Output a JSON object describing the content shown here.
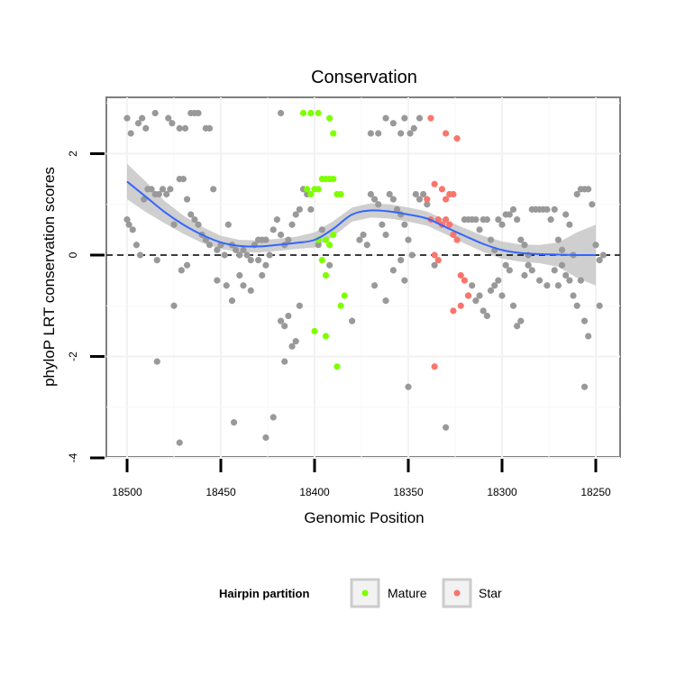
{
  "chart_data": {
    "type": "scatter",
    "title": "Conservation",
    "xlabel": "Genomic Position",
    "ylabel": "phyloP LRT conservation scores",
    "xlim": [
      18507,
      18237
    ],
    "ylim": [
      -4,
      3.1
    ],
    "x_reversed": true,
    "x_ticks": [
      18500,
      18450,
      18400,
      18350,
      18300,
      18250
    ],
    "x_tick_labels": [
      "18500",
      "18450",
      "18400",
      "18350",
      "18300",
      "18250"
    ],
    "y_ticks": [
      -4,
      -2,
      0,
      2
    ],
    "y_tick_labels": [
      "-4",
      "-2",
      "0",
      "2"
    ],
    "reference_line": {
      "y": 0,
      "style": "dashed",
      "color": "#000000"
    },
    "colors": {
      "other": "#999999",
      "mature": "#7fff00",
      "star": "#f8766d",
      "smooth": "#3366ff",
      "band": "#bfbfbf"
    },
    "legend": {
      "title": "Hairpin partition",
      "position": "bottom",
      "entries": [
        {
          "label": "Mature",
          "color": "#7fff00"
        },
        {
          "label": "Star",
          "color": "#f8766d"
        }
      ]
    },
    "series": [
      {
        "name": "Other",
        "points": [
          [
            18500,
            2.7
          ],
          [
            18498,
            2.4
          ],
          [
            18494,
            2.6
          ],
          [
            18492,
            2.7
          ],
          [
            18490,
            2.5
          ],
          [
            18485,
            2.8
          ],
          [
            18478,
            2.7
          ],
          [
            18476,
            2.6
          ],
          [
            18472,
            2.5
          ],
          [
            18469,
            2.5
          ],
          [
            18466,
            2.8
          ],
          [
            18464,
            2.8
          ],
          [
            18462,
            2.8
          ],
          [
            18458,
            2.5
          ],
          [
            18456,
            2.5
          ],
          [
            18418,
            2.8
          ],
          [
            18370,
            2.4
          ],
          [
            18366,
            2.4
          ],
          [
            18362,
            2.7
          ],
          [
            18358,
            2.6
          ],
          [
            18354,
            2.4
          ],
          [
            18352,
            2.7
          ],
          [
            18349,
            2.4
          ],
          [
            18347,
            2.5
          ],
          [
            18344,
            2.7
          ],
          [
            18500,
            0.7
          ],
          [
            18499,
            0.6
          ],
          [
            18497,
            0.5
          ],
          [
            18495,
            0.2
          ],
          [
            18493,
            0.0
          ],
          [
            18491,
            1.1
          ],
          [
            18489,
            1.3
          ],
          [
            18487,
            1.3
          ],
          [
            18485,
            1.2
          ],
          [
            18483,
            1.2
          ],
          [
            18481,
            1.3
          ],
          [
            18479,
            1.2
          ],
          [
            18477,
            1.3
          ],
          [
            18475,
            0.6
          ],
          [
            18472,
            1.5
          ],
          [
            18470,
            1.5
          ],
          [
            18468,
            1.1
          ],
          [
            18466,
            0.8
          ],
          [
            18464,
            0.7
          ],
          [
            18462,
            0.6
          ],
          [
            18460,
            0.4
          ],
          [
            18458,
            0.3
          ],
          [
            18456,
            0.2
          ],
          [
            18454,
            1.3
          ],
          [
            18452,
            0.1
          ],
          [
            18450,
            0.2
          ],
          [
            18448,
            0.0
          ],
          [
            18446,
            0.6
          ],
          [
            18444,
            0.2
          ],
          [
            18442,
            0.1
          ],
          [
            18440,
            0.0
          ],
          [
            18438,
            0.1
          ],
          [
            18436,
            0.0
          ],
          [
            18434,
            -0.1
          ],
          [
            18432,
            0.2
          ],
          [
            18430,
            0.3
          ],
          [
            18428,
            0.3
          ],
          [
            18426,
            0.3
          ],
          [
            18424,
            0.0
          ],
          [
            18422,
            0.5
          ],
          [
            18420,
            0.7
          ],
          [
            18418,
            0.4
          ],
          [
            18416,
            0.2
          ],
          [
            18414,
            0.3
          ],
          [
            18412,
            0.6
          ],
          [
            18410,
            0.8
          ],
          [
            18408,
            0.9
          ],
          [
            18406,
            1.3
          ],
          [
            18404,
            1.2
          ],
          [
            18402,
            0.9
          ],
          [
            18398,
            0.2
          ],
          [
            18396,
            0.5
          ],
          [
            18376,
            0.3
          ],
          [
            18374,
            0.4
          ],
          [
            18372,
            0.2
          ],
          [
            18370,
            1.2
          ],
          [
            18368,
            1.1
          ],
          [
            18366,
            1.0
          ],
          [
            18364,
            0.6
          ],
          [
            18362,
            0.4
          ],
          [
            18360,
            1.2
          ],
          [
            18358,
            1.1
          ],
          [
            18356,
            0.9
          ],
          [
            18354,
            0.8
          ],
          [
            18352,
            0.6
          ],
          [
            18350,
            0.3
          ],
          [
            18348,
            0.0
          ],
          [
            18346,
            1.2
          ],
          [
            18344,
            1.1
          ],
          [
            18342,
            1.2
          ],
          [
            18340,
            1.0
          ],
          [
            18320,
            0.7
          ],
          [
            18318,
            0.7
          ],
          [
            18316,
            0.7
          ],
          [
            18314,
            0.7
          ],
          [
            18312,
            0.5
          ],
          [
            18310,
            0.7
          ],
          [
            18308,
            0.7
          ],
          [
            18306,
            0.3
          ],
          [
            18304,
            0.1
          ],
          [
            18302,
            0.7
          ],
          [
            18300,
            0.6
          ],
          [
            18298,
            0.8
          ],
          [
            18296,
            0.8
          ],
          [
            18294,
            0.9
          ],
          [
            18292,
            0.7
          ],
          [
            18290,
            0.3
          ],
          [
            18288,
            0.2
          ],
          [
            18286,
            0.0
          ],
          [
            18284,
            0.9
          ],
          [
            18282,
            0.9
          ],
          [
            18280,
            0.9
          ],
          [
            18278,
            0.9
          ],
          [
            18276,
            0.9
          ],
          [
            18274,
            0.7
          ],
          [
            18272,
            0.9
          ],
          [
            18270,
            0.3
          ],
          [
            18268,
            0.1
          ],
          [
            18266,
            0.8
          ],
          [
            18264,
            0.6
          ],
          [
            18262,
            0.0
          ],
          [
            18260,
            1.2
          ],
          [
            18258,
            1.3
          ],
          [
            18256,
            1.3
          ],
          [
            18254,
            1.3
          ],
          [
            18252,
            1.0
          ],
          [
            18250,
            0.2
          ],
          [
            18248,
            -0.1
          ],
          [
            18246,
            0.0
          ],
          [
            18484,
            -0.1
          ],
          [
            18475,
            -1.0
          ],
          [
            18471,
            -0.3
          ],
          [
            18468,
            -0.2
          ],
          [
            18452,
            -0.5
          ],
          [
            18447,
            -0.6
          ],
          [
            18444,
            -0.9
          ],
          [
            18440,
            -0.4
          ],
          [
            18438,
            -0.6
          ],
          [
            18434,
            -0.7
          ],
          [
            18430,
            -0.1
          ],
          [
            18428,
            -0.4
          ],
          [
            18426,
            -0.2
          ],
          [
            18418,
            -1.3
          ],
          [
            18416,
            -1.4
          ],
          [
            18414,
            -1.2
          ],
          [
            18412,
            -1.8
          ],
          [
            18410,
            -1.7
          ],
          [
            18408,
            -1.0
          ],
          [
            18392,
            -0.2
          ],
          [
            18380,
            -1.3
          ],
          [
            18368,
            -0.6
          ],
          [
            18362,
            -0.9
          ],
          [
            18358,
            -0.3
          ],
          [
            18354,
            -0.1
          ],
          [
            18352,
            -0.5
          ],
          [
            18336,
            -0.2
          ],
          [
            18318,
            -0.8
          ],
          [
            18316,
            -0.6
          ],
          [
            18314,
            -0.9
          ],
          [
            18312,
            -0.8
          ],
          [
            18310,
            -1.1
          ],
          [
            18308,
            -1.2
          ],
          [
            18306,
            -0.7
          ],
          [
            18304,
            -0.6
          ],
          [
            18302,
            -0.5
          ],
          [
            18300,
            -0.8
          ],
          [
            18298,
            -0.2
          ],
          [
            18296,
            -0.3
          ],
          [
            18294,
            -1.0
          ],
          [
            18292,
            -1.4
          ],
          [
            18290,
            -1.3
          ],
          [
            18288,
            -0.4
          ],
          [
            18286,
            -0.2
          ],
          [
            18284,
            -0.3
          ],
          [
            18280,
            -0.5
          ],
          [
            18276,
            -0.6
          ],
          [
            18272,
            -0.3
          ],
          [
            18270,
            -0.6
          ],
          [
            18268,
            -0.2
          ],
          [
            18266,
            -0.4
          ],
          [
            18264,
            -0.5
          ],
          [
            18262,
            -0.8
          ],
          [
            18260,
            -1.0
          ],
          [
            18258,
            -0.5
          ],
          [
            18256,
            -1.3
          ],
          [
            18254,
            -1.6
          ],
          [
            18484,
            -2.1
          ],
          [
            18472,
            -3.7
          ],
          [
            18443,
            -3.3
          ],
          [
            18426,
            -3.6
          ],
          [
            18422,
            -3.2
          ],
          [
            18416,
            -2.1
          ],
          [
            18350,
            -2.6
          ],
          [
            18330,
            -3.4
          ],
          [
            18256,
            -2.6
          ],
          [
            18248,
            -1.0
          ]
        ]
      },
      {
        "name": "Mature",
        "points": [
          [
            18406,
            2.8
          ],
          [
            18402,
            2.8
          ],
          [
            18398,
            2.8
          ],
          [
            18392,
            2.7
          ],
          [
            18390,
            2.4
          ],
          [
            18404,
            1.3
          ],
          [
            18402,
            1.2
          ],
          [
            18400,
            1.3
          ],
          [
            18398,
            1.3
          ],
          [
            18396,
            1.5
          ],
          [
            18394,
            1.5
          ],
          [
            18392,
            1.5
          ],
          [
            18390,
            1.5
          ],
          [
            18388,
            1.2
          ],
          [
            18386,
            1.2
          ],
          [
            18394,
            0.3
          ],
          [
            18392,
            0.2
          ],
          [
            18390,
            0.4
          ],
          [
            18398,
            0.3
          ],
          [
            18396,
            -0.1
          ],
          [
            18394,
            -0.4
          ],
          [
            18386,
            -1.0
          ],
          [
            18384,
            -0.8
          ],
          [
            18400,
            -1.5
          ],
          [
            18394,
            -1.6
          ],
          [
            18388,
            -2.2
          ]
        ]
      },
      {
        "name": "Star",
        "points": [
          [
            18338,
            2.7
          ],
          [
            18330,
            2.4
          ],
          [
            18324,
            2.3
          ],
          [
            18336,
            1.4
          ],
          [
            18332,
            1.3
          ],
          [
            18340,
            1.1
          ],
          [
            18330,
            1.1
          ],
          [
            18328,
            1.2
          ],
          [
            18326,
            1.2
          ],
          [
            18338,
            0.7
          ],
          [
            18334,
            0.7
          ],
          [
            18332,
            0.6
          ],
          [
            18330,
            0.7
          ],
          [
            18328,
            0.6
          ],
          [
            18326,
            0.4
          ],
          [
            18324,
            0.3
          ],
          [
            18336,
            0.0
          ],
          [
            18334,
            -0.1
          ],
          [
            18322,
            -0.4
          ],
          [
            18320,
            -0.5
          ],
          [
            18318,
            -0.8
          ],
          [
            18322,
            -1.0
          ],
          [
            18326,
            -1.1
          ],
          [
            18336,
            -2.2
          ]
        ]
      }
    ],
    "smooth": {
      "x": [
        18500,
        18490,
        18480,
        18470,
        18460,
        18450,
        18440,
        18430,
        18420,
        18410,
        18400,
        18390,
        18380,
        18370,
        18360,
        18350,
        18340,
        18330,
        18320,
        18310,
        18300,
        18290,
        18280,
        18270,
        18260,
        18250
      ],
      "y": [
        1.45,
        1.15,
        0.85,
        0.6,
        0.4,
        0.25,
        0.18,
        0.17,
        0.2,
        0.24,
        0.3,
        0.52,
        0.8,
        0.88,
        0.86,
        0.8,
        0.72,
        0.55,
        0.38,
        0.22,
        0.1,
        0.04,
        0.02,
        0.01,
        0.0,
        0.0
      ],
      "band": [
        0.35,
        0.3,
        0.22,
        0.18,
        0.16,
        0.13,
        0.12,
        0.12,
        0.12,
        0.12,
        0.15,
        0.15,
        0.14,
        0.14,
        0.14,
        0.14,
        0.14,
        0.14,
        0.15,
        0.16,
        0.17,
        0.17,
        0.18,
        0.24,
        0.45,
        0.6
      ]
    }
  }
}
